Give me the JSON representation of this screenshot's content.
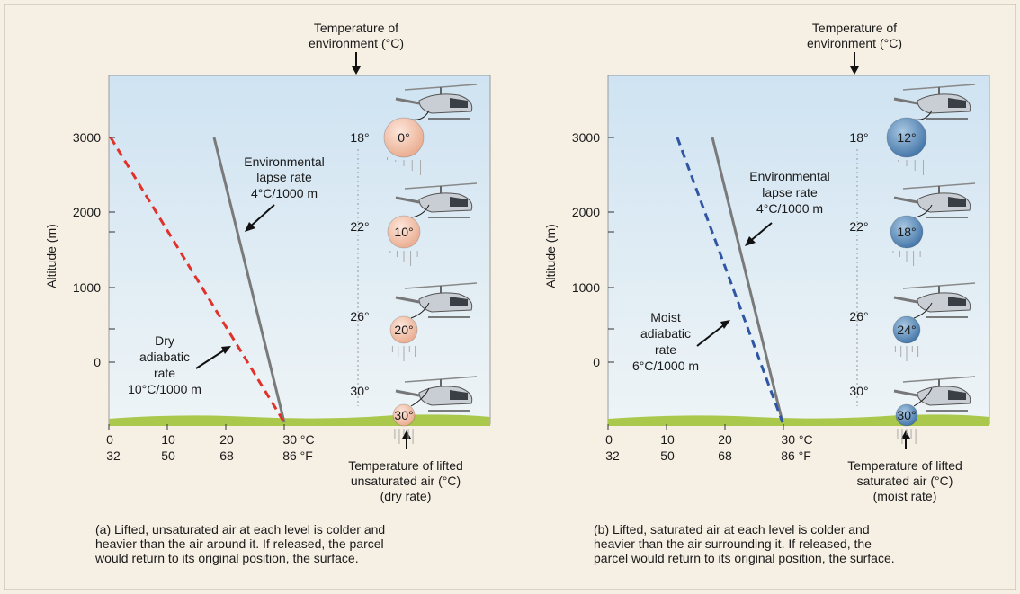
{
  "panels": [
    {
      "id": "a",
      "top_label": [
        "Temperature of",
        "environment (°C)"
      ],
      "ylabel": "Altitude (m)",
      "y_ticks": [
        "3000",
        "2000",
        "1000",
        "0"
      ],
      "x_ticks_c": [
        "0",
        "10",
        "20",
        "30 °C"
      ],
      "x_ticks_f": [
        "32",
        "50",
        "68",
        "86 °F"
      ],
      "env_label": [
        "Environmental",
        "lapse rate",
        "4°C/1000 m"
      ],
      "parcel_label": [
        "Dry",
        "adiabatic",
        "rate",
        "10°C/1000 m"
      ],
      "bottom_label": [
        "Temperature of lifted",
        "unsaturated air (°C)",
        "(dry rate)"
      ],
      "env_temps": [
        "18°",
        "22°",
        "26°",
        "30°"
      ],
      "parcel_temps": [
        "0°",
        "10°",
        "20°",
        "30°"
      ],
      "parcel_color": "#f1c4ad",
      "parcel_line_color": "#e0312a",
      "caption": "(a) Lifted, unsaturated air at each level is colder and\nheavier than the air around it.  If released, the parcel\nwould return to its original position, the surface."
    },
    {
      "id": "b",
      "top_label": [
        "Temperature of",
        "environment (°C)"
      ],
      "ylabel": "Altitude (m)",
      "y_ticks": [
        "3000",
        "2000",
        "1000",
        "0"
      ],
      "x_ticks_c": [
        "0",
        "10",
        "20",
        "30 °C"
      ],
      "x_ticks_f": [
        "32",
        "50",
        "68",
        "86 °F"
      ],
      "env_label": [
        "Environmental",
        "lapse rate",
        "4°C/1000 m"
      ],
      "parcel_label": [
        "Moist",
        "adiabatic",
        "rate",
        "6°C/1000 m"
      ],
      "bottom_label": [
        "Temperature of lifted",
        "saturated air (°C)",
        "(moist rate)"
      ],
      "env_temps": [
        "18°",
        "22°",
        "26°",
        "30°"
      ],
      "parcel_temps": [
        "12°",
        "18°",
        "24°",
        "30°"
      ],
      "parcel_color": "#6f9ec4",
      "parcel_line_color": "#2f55a3",
      "caption": "(b) Lifted, saturated air at each level is colder and\nheavier than the air surrounding it.  If released, the\nparcel would return to its original position, the surface."
    }
  ],
  "colors": {
    "sky_top": "#cfe3f2",
    "sky_bottom": "#eaf2f6",
    "ground": "#a9c84c",
    "env_line": "#7a7a7a"
  }
}
